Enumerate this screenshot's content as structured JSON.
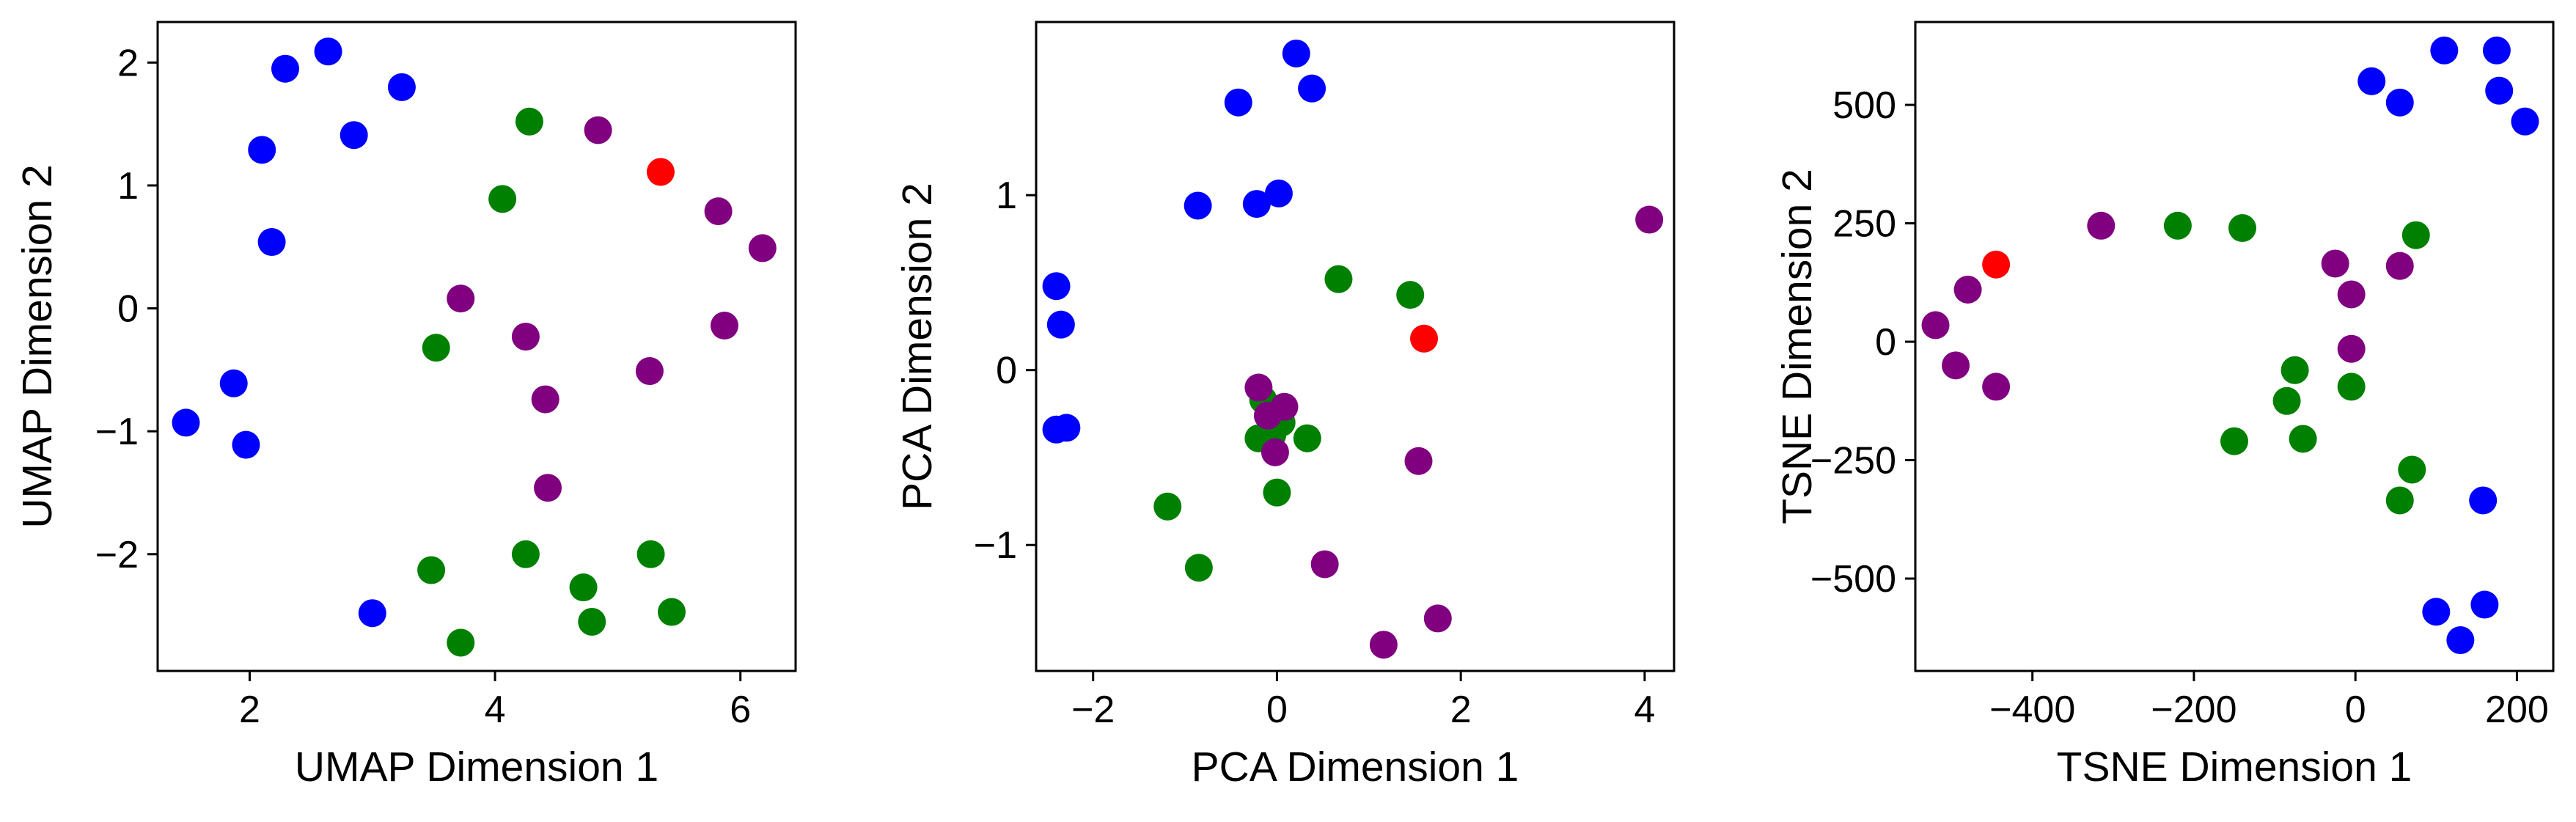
{
  "colors": {
    "blue": "#0000ff",
    "green": "#008000",
    "purple": "#800080",
    "red": "#ff0000",
    "axis": "#000000",
    "background": "#ffffff"
  },
  "chart_data": [
    {
      "type": "scatter",
      "title": "",
      "xlabel": "UMAP Dimension 1",
      "ylabel": "UMAP Dimension 2",
      "xlim": [
        1.25,
        6.45
      ],
      "ylim": [
        -2.95,
        2.33
      ],
      "xticks": [
        2,
        4,
        6
      ],
      "yticks": [
        -2,
        -1,
        0,
        1,
        2
      ],
      "grid": false,
      "legend": "none",
      "series": [
        {
          "color": "blue",
          "points": [
            [
              1.48,
              -0.93
            ],
            [
              1.87,
              -0.61
            ],
            [
              1.97,
              -1.11
            ],
            [
              2.1,
              1.29
            ],
            [
              2.18,
              0.54
            ],
            [
              2.29,
              1.95
            ],
            [
              2.64,
              2.09
            ],
            [
              2.85,
              1.41
            ],
            [
              3.24,
              1.8
            ],
            [
              3.0,
              -2.48
            ]
          ]
        },
        {
          "color": "green",
          "points": [
            [
              4.28,
              1.52
            ],
            [
              4.06,
              0.89
            ],
            [
              3.52,
              -0.32
            ],
            [
              3.48,
              -2.13
            ],
            [
              3.72,
              -2.72
            ],
            [
              4.25,
              -2.0
            ],
            [
              4.72,
              -2.27
            ],
            [
              4.79,
              -2.55
            ],
            [
              5.27,
              -2.0
            ],
            [
              5.44,
              -2.47
            ]
          ]
        },
        {
          "color": "purple",
          "points": [
            [
              4.84,
              1.45
            ],
            [
              5.82,
              0.79
            ],
            [
              6.18,
              0.49
            ],
            [
              3.72,
              0.08
            ],
            [
              4.25,
              -0.23
            ],
            [
              5.87,
              -0.14
            ],
            [
              5.26,
              -0.51
            ],
            [
              4.41,
              -0.74
            ],
            [
              4.43,
              -1.46
            ]
          ]
        },
        {
          "color": "red",
          "points": [
            [
              5.35,
              1.11
            ]
          ]
        }
      ]
    },
    {
      "type": "scatter",
      "title": "",
      "xlabel": "PCA Dimension 1",
      "ylabel": "PCA Dimension 2",
      "xlim": [
        -2.62,
        4.32
      ],
      "ylim": [
        -1.72,
        1.99
      ],
      "xticks": [
        -2,
        0,
        2,
        4
      ],
      "yticks": [
        -1,
        0,
        1
      ],
      "grid": false,
      "legend": "none",
      "series": [
        {
          "color": "blue",
          "points": [
            [
              0.21,
              1.81
            ],
            [
              0.38,
              1.61
            ],
            [
              -0.42,
              1.53
            ],
            [
              -0.86,
              0.94
            ],
            [
              -0.22,
              0.95
            ],
            [
              0.02,
              1.01
            ],
            [
              -2.4,
              0.48
            ],
            [
              -2.35,
              0.26
            ],
            [
              -2.4,
              -0.34
            ],
            [
              -2.29,
              -0.33
            ]
          ]
        },
        {
          "color": "green",
          "points": [
            [
              0.67,
              0.52
            ],
            [
              1.45,
              0.43
            ],
            [
              -0.15,
              -0.17
            ],
            [
              -0.2,
              -0.39
            ],
            [
              0.33,
              -0.39
            ],
            [
              0.0,
              -0.7
            ],
            [
              -1.19,
              -0.78
            ],
            [
              -0.85,
              -1.13
            ],
            [
              0.05,
              -0.3
            ],
            [
              -0.05,
              -0.37
            ]
          ]
        },
        {
          "color": "purple",
          "points": [
            [
              4.05,
              0.86
            ],
            [
              -0.2,
              -0.1
            ],
            [
              0.08,
              -0.21
            ],
            [
              -0.1,
              -0.26
            ],
            [
              -0.02,
              -0.47
            ],
            [
              1.54,
              -0.52
            ],
            [
              0.52,
              -1.11
            ],
            [
              1.75,
              -1.42
            ],
            [
              1.16,
              -1.57
            ]
          ]
        },
        {
          "color": "red",
          "points": [
            [
              1.6,
              0.18
            ]
          ]
        }
      ]
    },
    {
      "type": "scatter",
      "title": "",
      "xlabel": "TSNE Dimension 1",
      "ylabel": "TSNE Dimension 2",
      "xlim": [
        -545,
        245
      ],
      "ylim": [
        -695,
        675
      ],
      "xticks": [
        -400,
        -200,
        0,
        200
      ],
      "yticks": [
        -500,
        -250,
        0,
        250,
        500
      ],
      "grid": false,
      "legend": "none",
      "series": [
        {
          "color": "blue",
          "points": [
            [
              110,
              615
            ],
            [
              175,
              615
            ],
            [
              20,
              550
            ],
            [
              55,
              505
            ],
            [
              178,
              530
            ],
            [
              210,
              465
            ],
            [
              158,
              -335
            ],
            [
              100,
              -570
            ],
            [
              160,
              -555
            ],
            [
              130,
              -630
            ]
          ]
        },
        {
          "color": "green",
          "points": [
            [
              -220,
              245
            ],
            [
              -140,
              240
            ],
            [
              75,
              225
            ],
            [
              -75,
              -60
            ],
            [
              -85,
              -125
            ],
            [
              -5,
              -95
            ],
            [
              -150,
              -210
            ],
            [
              -65,
              -205
            ],
            [
              70,
              -270
            ],
            [
              55,
              -335
            ]
          ]
        },
        {
          "color": "purple",
          "points": [
            [
              -315,
              245
            ],
            [
              -25,
              165
            ],
            [
              55,
              160
            ],
            [
              -5,
              100
            ],
            [
              -480,
              110
            ],
            [
              -520,
              35
            ],
            [
              -5,
              -15
            ],
            [
              -495,
              -50
            ],
            [
              -445,
              -95
            ]
          ]
        },
        {
          "color": "red",
          "points": [
            [
              -445,
              163
            ]
          ]
        }
      ]
    }
  ]
}
